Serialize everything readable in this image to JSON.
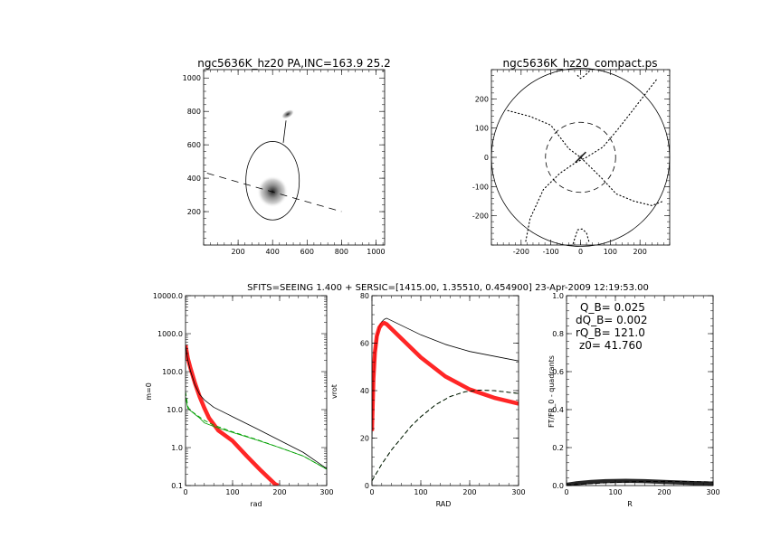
{
  "header": "SFITS=SEEING 1.400 + SERSIC=[1415.00, 1.35510, 0.454900]  23-Apr-2009 12:19:53.00",
  "colors": {
    "model": "#ff0000",
    "green": "#00a000",
    "axis": "#000000",
    "image": "#111111"
  },
  "chart_data": [
    {
      "type": "image",
      "title": "ngc5636K_hz20 PA,INC=163.9 25.2",
      "xlim": [
        0,
        1050
      ],
      "ylim": [
        0,
        1050
      ],
      "xticks": [
        200,
        400,
        600,
        800,
        1000
      ],
      "yticks": [
        200,
        400,
        600,
        800,
        1000
      ],
      "xtick_labels": [
        "200",
        "400",
        "600",
        "800",
        "1000"
      ],
      "ytick_labels": [
        "200",
        "400",
        "600",
        "800",
        "1000"
      ],
      "blobs": [
        {
          "x": 400,
          "y": 320,
          "rx": 90,
          "ry": 95,
          "rotation": 0
        },
        {
          "x": 488,
          "y": 783,
          "rx": 40,
          "ry": 22,
          "rotation": -30
        }
      ],
      "ellipse": {
        "x": 400,
        "y": 385,
        "rx": 155,
        "ry": 235
      },
      "connector": [
        [
          462,
          612
        ],
        [
          478,
          745
        ]
      ],
      "dashed_line": [
        [
          20,
          430
        ],
        [
          800,
          200
        ]
      ]
    },
    {
      "type": "image",
      "title": "ngc5636K_hz20_compact.ps",
      "xlim": [
        -300,
        300
      ],
      "ylim": [
        -300,
        300
      ],
      "xticks": [
        -200,
        -100,
        0,
        100,
        200
      ],
      "yticks": [
        -200,
        -100,
        0,
        100,
        200
      ],
      "xtick_labels": [
        "-200",
        "-100",
        "0",
        "100",
        "200"
      ],
      "ytick_labels": [
        "-200",
        "-100",
        "0",
        "100",
        "200"
      ],
      "outer_circle_radius": 300,
      "dashed_circle_radius": 118,
      "dotted_curves": [
        [
          [
            -10,
            280
          ],
          [
            0,
            270
          ],
          [
            15,
            280
          ],
          [
            30,
            295
          ]
        ],
        [
          [
            255,
            265
          ],
          [
            175,
            160
          ],
          [
            125,
            95
          ],
          [
            75,
            35
          ],
          [
            20,
            0
          ],
          [
            -20,
            -20
          ],
          [
            -70,
            -55
          ],
          [
            -125,
            -110
          ],
          [
            -170,
            -210
          ],
          [
            -185,
            -290
          ]
        ],
        [
          [
            -245,
            160
          ],
          [
            -170,
            140
          ],
          [
            -100,
            110
          ],
          [
            -40,
            30
          ],
          [
            0,
            0
          ],
          [
            70,
            -70
          ],
          [
            120,
            -125
          ],
          [
            180,
            -150
          ],
          [
            240,
            -165
          ],
          [
            278,
            -150
          ]
        ],
        [
          [
            -25,
            -295
          ],
          [
            -10,
            -248
          ],
          [
            5,
            -245
          ],
          [
            20,
            -258
          ],
          [
            30,
            -295
          ]
        ]
      ],
      "bar": {
        "from": [
          -18,
          -18
        ],
        "to": [
          18,
          18
        ]
      }
    },
    {
      "type": "line",
      "xlabel": "rad",
      "ylabel": "m=0",
      "xlim": [
        0,
        300
      ],
      "ylim": [
        0.1,
        10000
      ],
      "log_y": true,
      "xticks": [
        0,
        100,
        200,
        300
      ],
      "xtick_labels": [
        "0",
        "100",
        "200",
        "300"
      ],
      "yticks": [
        0.1,
        1,
        10,
        100,
        1000,
        10000
      ],
      "ytick_labels": [
        "0.1",
        "1.0",
        "10.0",
        "100.0",
        "1000.0",
        "10000.0"
      ],
      "series": [
        {
          "color": "#ff0000",
          "style": "thick",
          "x": [
            0,
            5,
            10,
            20,
            30,
            40,
            50,
            70,
            100,
            130,
            160,
            190,
            197
          ],
          "y": [
            500,
            220,
            130,
            50,
            22,
            11,
            6,
            2.8,
            1.5,
            0.6,
            0.25,
            0.11,
            0.1
          ]
        },
        {
          "color": "#000000",
          "style": "solid",
          "x": [
            0,
            5,
            10,
            20,
            30,
            40,
            60,
            100,
            150,
            200,
            250,
            300
          ],
          "y": [
            500,
            200,
            110,
            45,
            25,
            18,
            11.5,
            6.5,
            3.2,
            1.55,
            0.75,
            0.28
          ]
        },
        {
          "color": "#00a000",
          "style": "solid",
          "x": [
            0,
            5,
            10,
            20,
            30,
            40,
            60,
            80,
            100,
            150,
            200,
            250,
            300
          ],
          "y": [
            22,
            10.5,
            9.5,
            7.5,
            6.0,
            4.5,
            3.6,
            3.0,
            2.5,
            1.6,
            1.0,
            0.6,
            0.27
          ]
        },
        {
          "color": "#00a000",
          "style": "dashed",
          "x": [
            0,
            5,
            10,
            20,
            40,
            60,
            100,
            150,
            200,
            250,
            300
          ],
          "y": [
            30,
            12,
            9.5,
            7.8,
            5.2,
            3.9,
            2.6,
            1.65,
            1.0,
            0.6,
            0.27
          ]
        }
      ]
    },
    {
      "type": "line",
      "xlabel": "RAD",
      "ylabel": "vrot",
      "xlim": [
        0,
        300
      ],
      "ylim": [
        0,
        80
      ],
      "xticks": [
        0,
        100,
        200,
        300
      ],
      "xtick_labels": [
        "0",
        "100",
        "200",
        "300"
      ],
      "yticks": [
        0,
        20,
        40,
        60,
        80
      ],
      "ytick_labels": [
        "0",
        "20",
        "40",
        "60",
        "80"
      ],
      "series": [
        {
          "color": "#000000",
          "style": "solid",
          "x": [
            0,
            3,
            6,
            10,
            15,
            20,
            25,
            30,
            40,
            60,
            80,
            100,
            150,
            200,
            250,
            300
          ],
          "y": [
            20,
            45,
            55,
            62,
            67,
            69,
            70,
            70.5,
            69.5,
            67.5,
            65.5,
            63.5,
            59.5,
            56.5,
            54.5,
            52.5
          ]
        },
        {
          "color": "#ff0000",
          "style": "thick",
          "x": [
            0,
            3,
            6,
            10,
            15,
            20,
            25,
            30,
            40,
            60,
            80,
            100,
            150,
            200,
            250,
            300
          ],
          "y": [
            23,
            45,
            56,
            63,
            66.5,
            68,
            68.5,
            68,
            66,
            62,
            58,
            54,
            46,
            40.5,
            37,
            34.5
          ]
        },
        {
          "color": "#00a000",
          "style": "dashed",
          "x": [
            0,
            10,
            20,
            40,
            60,
            80,
            100,
            130,
            160,
            190,
            220,
            250,
            300
          ],
          "y": [
            2,
            5.5,
            9,
            15,
            20,
            25,
            29,
            34,
            37.5,
            39.5,
            40.2,
            40,
            38.8
          ]
        },
        {
          "color": "#000000",
          "style": "dashed",
          "x": [
            0,
            10,
            20,
            40,
            60,
            80,
            100,
            130,
            160,
            190,
            220,
            250,
            300
          ],
          "y": [
            2,
            5.5,
            9,
            15,
            20,
            25,
            29,
            34,
            37.5,
            39.5,
            40.2,
            40,
            38.8
          ]
        }
      ]
    },
    {
      "type": "line",
      "xlabel": "R",
      "ylabel": "FT/FR_0 - quadrants",
      "xlim": [
        0,
        300
      ],
      "ylim": [
        0,
        1
      ],
      "xticks": [
        0,
        100,
        200,
        300
      ],
      "xtick_labels": [
        "0",
        "100",
        "200",
        "300"
      ],
      "yticks": [
        0,
        0.2,
        0.4,
        0.6,
        0.8,
        1.0
      ],
      "ytick_labels": [
        "0.0",
        "0.2",
        "0.4",
        "0.6",
        "0.8",
        "1.0"
      ],
      "annotations": [
        "Q_B=  0.025",
        "dQ_B=  0.002",
        "rQ_B=  121.0",
        "z0= 41.760"
      ],
      "series": [
        {
          "color": "#000000",
          "style": "thick",
          "x": [
            0,
            20,
            50,
            80,
            121,
            160,
            200,
            250,
            300
          ],
          "y": [
            0.004,
            0.012,
            0.019,
            0.023,
            0.025,
            0.023,
            0.019,
            0.014,
            0.011
          ]
        },
        {
          "color": "#000000",
          "style": "dashed",
          "x": [
            0,
            50,
            100,
            150,
            200,
            250,
            300
          ],
          "y": [
            0.003,
            0.01,
            0.017,
            0.021,
            0.022,
            0.021,
            0.019
          ]
        }
      ]
    }
  ]
}
